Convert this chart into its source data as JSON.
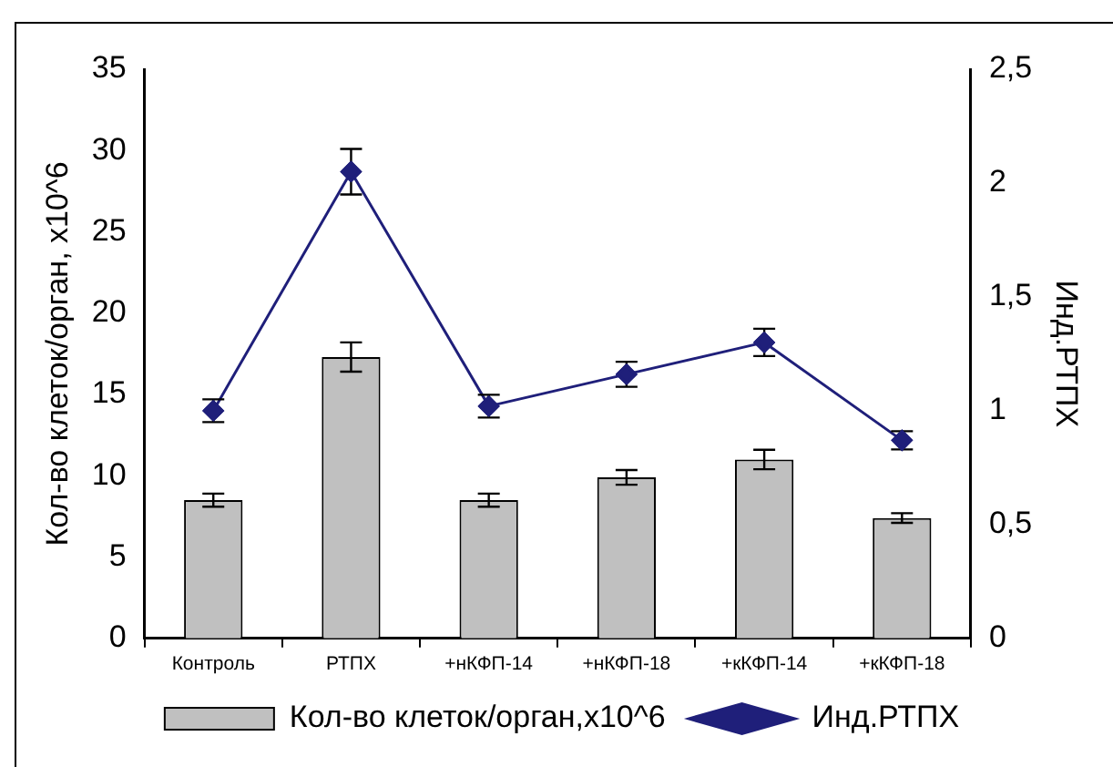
{
  "chart_data": {
    "type": "bar",
    "categories": [
      "Контроль",
      "РТПХ",
      "+нКФП-14",
      "+нКФП-18",
      "+кКФП-14",
      "+кКФП-18"
    ],
    "ylabel": "Кол-во клеток/орган, х10^6",
    "y2label": "Инд.РТПХ",
    "series": [
      {
        "name": "Кол-во клеток/орган,х10^6",
        "color": "#c0c0c0",
        "values": [
          8.5,
          17.3,
          8.5,
          9.9,
          11.0,
          7.4
        ],
        "errors": [
          0.4,
          0.9,
          0.4,
          0.45,
          0.6,
          0.3
        ]
      },
      {
        "name": "Инд.РТПХ",
        "type": "line",
        "axis": "y2",
        "color": "#1f1f7a",
        "values": [
          1.0,
          2.05,
          1.02,
          1.16,
          1.3,
          0.87
        ],
        "errors": [
          0.05,
          0.1,
          0.05,
          0.055,
          0.06,
          0.04
        ],
        "marker": "diamond"
      }
    ],
    "ylim": [
      0,
      35
    ],
    "yticks": [
      0,
      5,
      10,
      15,
      20,
      25,
      30,
      35
    ],
    "y2lim": [
      0,
      2.5
    ],
    "y2ticks": [
      0,
      {
        "value": 0.5,
        "label": "0,5"
      },
      1,
      {
        "value": 1.5,
        "label": "1,5"
      },
      2,
      {
        "value": 2.5,
        "label": "2,5"
      }
    ],
    "grid": false,
    "legend": "bottom"
  }
}
